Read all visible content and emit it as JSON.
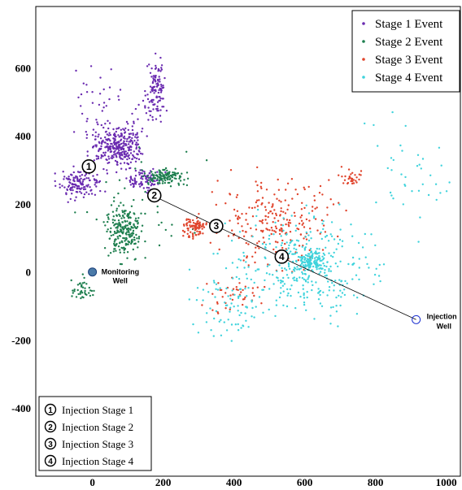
{
  "chart_data": {
    "type": "scatter",
    "title": "",
    "xlabel": "",
    "ylabel": "",
    "xlim": [
      -160,
      1040
    ],
    "ylim": [
      -600,
      780
    ],
    "xticks": [
      0,
      200,
      400,
      600,
      800,
      1000
    ],
    "yticks": [
      -400,
      -200,
      0,
      200,
      400,
      600
    ],
    "x_tick_labels": [
      "0",
      "200",
      "400",
      "600",
      "800",
      "1000"
    ],
    "y_tick_labels": [
      "-400",
      "-200",
      "0",
      "200",
      "400",
      "600"
    ],
    "grid": false,
    "legend_position": "top-right",
    "stage_legend_position": "bottom-left",
    "series": [
      {
        "name": "Stage 1 Event",
        "color": "#6a2bb0",
        "clusters": [
          {
            "center": [
              70,
              370
            ],
            "spread": [
              55,
              45
            ],
            "count": 300
          },
          {
            "center": [
              180,
              540
            ],
            "spread": [
              22,
              70
            ],
            "count": 120
          },
          {
            "center": [
              -40,
              260
            ],
            "spread": [
              50,
              35
            ],
            "count": 140
          },
          {
            "center": [
              150,
              270
            ],
            "spread": [
              40,
              25
            ],
            "count": 90
          },
          {
            "center": [
              40,
              450
            ],
            "spread": [
              80,
              120
            ],
            "count": 60
          }
        ]
      },
      {
        "name": "Stage 2 Event",
        "color": "#1e7f4f",
        "clusters": [
          {
            "center": [
              90,
              120
            ],
            "spread": [
              40,
              60
            ],
            "count": 220
          },
          {
            "center": [
              210,
              280
            ],
            "spread": [
              45,
              20
            ],
            "count": 120
          },
          {
            "center": [
              -30,
              -50
            ],
            "spread": [
              30,
              30
            ],
            "count": 40
          },
          {
            "center": [
              140,
              200
            ],
            "spread": [
              120,
              120
            ],
            "count": 40
          }
        ]
      },
      {
        "name": "Stage 3 Event",
        "color": "#e0442c",
        "clusters": [
          {
            "center": [
              290,
              130
            ],
            "spread": [
              30,
              25
            ],
            "count": 90
          },
          {
            "center": [
              520,
              150
            ],
            "spread": [
              130,
              110
            ],
            "count": 230
          },
          {
            "center": [
              730,
              280
            ],
            "spread": [
              25,
              20
            ],
            "count": 30
          },
          {
            "center": [
              400,
              -70
            ],
            "spread": [
              70,
              40
            ],
            "count": 40
          }
        ]
      },
      {
        "name": "Stage 4 Event",
        "color": "#3fd3dc",
        "clusters": [
          {
            "center": [
              600,
              20
            ],
            "spread": [
              170,
              120
            ],
            "count": 330
          },
          {
            "center": [
              620,
              30
            ],
            "spread": [
              40,
              25
            ],
            "count": 120
          },
          {
            "center": [
              380,
              -100
            ],
            "spread": [
              90,
              90
            ],
            "count": 70
          },
          {
            "center": [
              900,
              300
            ],
            "spread": [
              110,
              140
            ],
            "count": 40
          }
        ]
      }
    ],
    "injection_path": [
      [
        180,
        220
      ],
      [
        360,
        130
      ],
      [
        540,
        40
      ],
      [
        915,
        -140
      ]
    ],
    "stage_markers": [
      {
        "label": "1",
        "x": -10,
        "y": 310
      },
      {
        "label": "2",
        "x": 175,
        "y": 225
      },
      {
        "label": "3",
        "x": 350,
        "y": 135
      },
      {
        "label": "4",
        "x": 535,
        "y": 45
      }
    ],
    "wells": [
      {
        "name": "monitoring",
        "lines": [
          "Monitoring",
          "Well"
        ],
        "x": 0,
        "y": 0,
        "color": "#1a3f7a"
      },
      {
        "name": "injection",
        "lines": [
          "Injection",
          "Well"
        ],
        "x": 915,
        "y": -140,
        "color": "#1a2fd0"
      }
    ],
    "stage_legend": [
      {
        "number": "1",
        "label": "Injection Stage 1"
      },
      {
        "number": "2",
        "label": "Injection Stage 2"
      },
      {
        "number": "3",
        "label": "Injection Stage 3"
      },
      {
        "number": "4",
        "label": "Injection Stage 4"
      }
    ]
  }
}
